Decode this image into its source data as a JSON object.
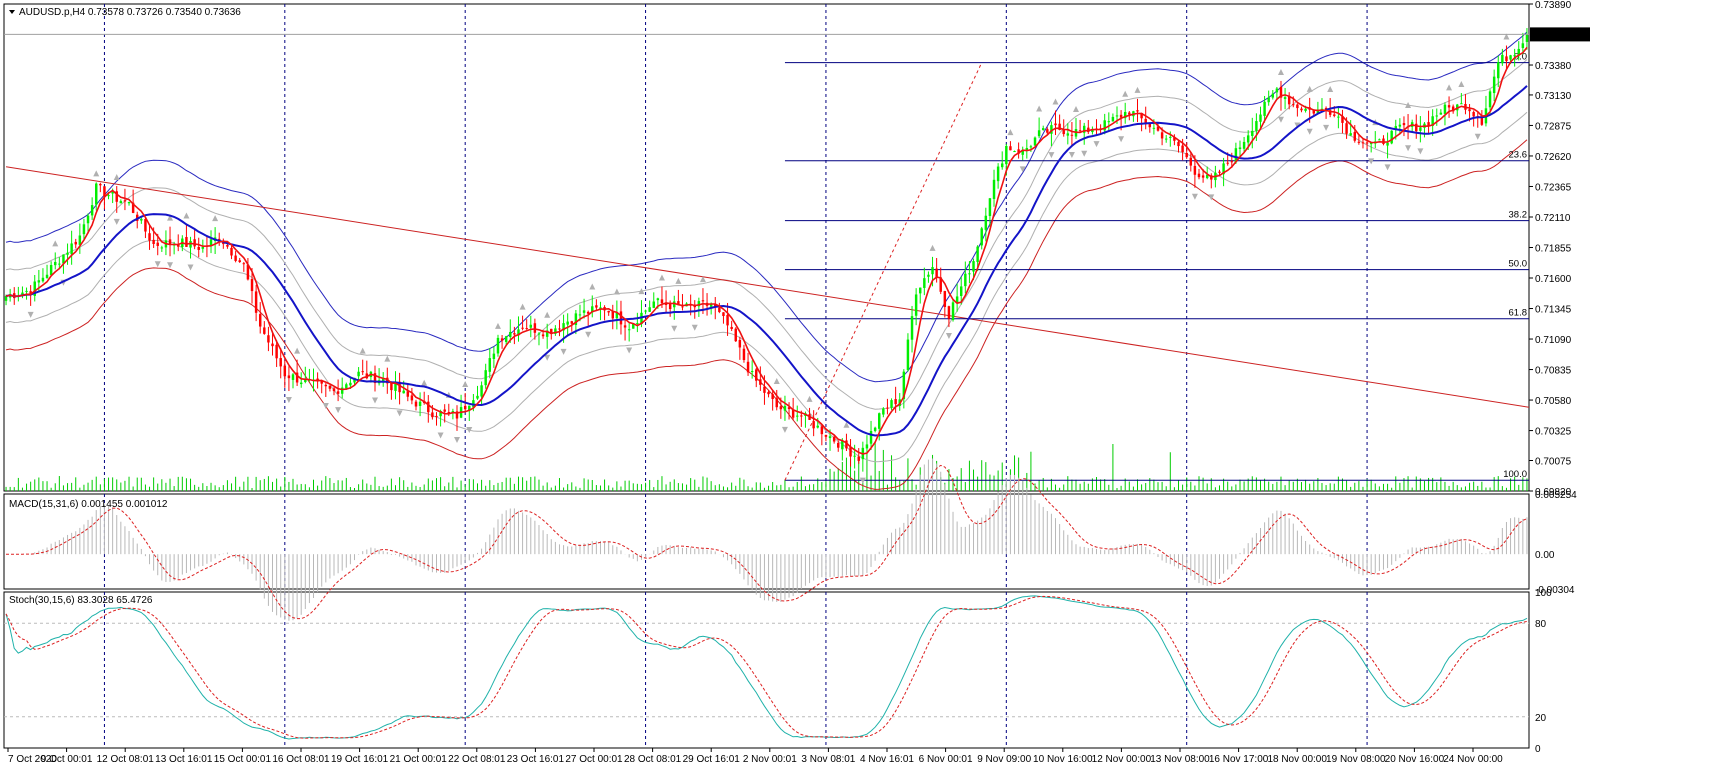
{
  "chart_data": [
    {
      "type": "candlestick",
      "symbol_info": "AUDUSD.p,H4  0.73578 0.73726 0.73540 0.73636",
      "last_price": "0.73636",
      "ylim": [
        0.6982,
        0.7389
      ],
      "y_ticks": [
        "0.73890",
        "0.73380",
        "0.73130",
        "0.72875",
        "0.72620",
        "0.72365",
        "0.72110",
        "0.71855",
        "0.71600",
        "0.71345",
        "0.71090",
        "0.70835",
        "0.70580",
        "0.70325",
        "0.70075",
        "0.69820"
      ],
      "x_ticks": [
        "7 Oct 2020",
        "9 Oct 00:01",
        "12 Oct 08:01",
        "13 Oct 16:01",
        "15 Oct 00:01",
        "16 Oct 08:01",
        "19 Oct 16:01",
        "21 Oct 00:01",
        "22 Oct 08:01",
        "23 Oct 16:01",
        "27 Oct 00:01",
        "28 Oct 08:01",
        "29 Oct 16:01",
        "2 Nov 00:01",
        "3 Nov 08:01",
        "4 Nov 16:01",
        "6 Nov 00:01",
        "9 Nov 09:00",
        "10 Nov 16:00",
        "12 Nov 00:00",
        "13 Nov 08:00",
        "16 Nov 17:00",
        "18 Nov 00:00",
        "19 Nov 08:00",
        "20 Nov 16:00",
        "24 Nov 00:00"
      ],
      "close_path": [
        [
          0,
          0.7145
        ],
        [
          6,
          0.715
        ],
        [
          12,
          0.7172
        ],
        [
          18,
          0.7195
        ],
        [
          22,
          0.7235
        ],
        [
          26,
          0.7228
        ],
        [
          30,
          0.7222
        ],
        [
          36,
          0.7188
        ],
        [
          42,
          0.719
        ],
        [
          48,
          0.7185
        ],
        [
          52,
          0.7195
        ],
        [
          58,
          0.717
        ],
        [
          62,
          0.712
        ],
        [
          68,
          0.708
        ],
        [
          74,
          0.7072
        ],
        [
          80,
          0.7065
        ],
        [
          86,
          0.708
        ],
        [
          92,
          0.7075
        ],
        [
          98,
          0.706
        ],
        [
          104,
          0.7048
        ],
        [
          110,
          0.7045
        ],
        [
          116,
          0.707
        ],
        [
          120,
          0.711
        ],
        [
          126,
          0.712
        ],
        [
          132,
          0.7115
        ],
        [
          140,
          0.713
        ],
        [
          146,
          0.7135
        ],
        [
          152,
          0.712
        ],
        [
          158,
          0.714
        ],
        [
          166,
          0.7135
        ],
        [
          172,
          0.7138
        ],
        [
          176,
          0.712
        ],
        [
          182,
          0.7078
        ],
        [
          188,
          0.7052
        ],
        [
          194,
          0.7045
        ],
        [
          200,
          0.703
        ],
        [
          204,
          0.702
        ],
        [
          208,
          0.701
        ],
        [
          214,
          0.705
        ],
        [
          218,
          0.706
        ],
        [
          222,
          0.715
        ],
        [
          226,
          0.717
        ],
        [
          230,
          0.713
        ],
        [
          236,
          0.7175
        ],
        [
          240,
          0.723
        ],
        [
          244,
          0.727
        ],
        [
          248,
          0.7265
        ],
        [
          252,
          0.728
        ],
        [
          256,
          0.7285
        ],
        [
          262,
          0.7282
        ],
        [
          268,
          0.7288
        ],
        [
          274,
          0.73
        ],
        [
          280,
          0.7285
        ],
        [
          286,
          0.727
        ],
        [
          290,
          0.725
        ],
        [
          294,
          0.724
        ],
        [
          300,
          0.7265
        ],
        [
          306,
          0.7298
        ],
        [
          310,
          0.7318
        ],
        [
          314,
          0.7305
        ],
        [
          318,
          0.73
        ],
        [
          324,
          0.73
        ],
        [
          328,
          0.728
        ],
        [
          334,
          0.727
        ],
        [
          340,
          0.7285
        ],
        [
          346,
          0.7288
        ],
        [
          350,
          0.73
        ],
        [
          356,
          0.7305
        ],
        [
          360,
          0.7292
        ],
        [
          364,
          0.734
        ],
        [
          368,
          0.735
        ],
        [
          371,
          0.7364
        ]
      ],
      "fibonacci": [
        {
          "level": "0.0",
          "price": 0.734
        },
        {
          "level": "23.6",
          "price": 0.7258
        },
        {
          "level": "38.2",
          "price": 0.7208
        },
        {
          "level": "50.0",
          "price": 0.7167
        },
        {
          "level": "61.8",
          "price": 0.7126
        },
        {
          "level": "100.0",
          "price": 0.6991
        }
      ],
      "trendline": {
        "from": [
          0,
          0.7253
        ],
        "to": [
          372,
          0.7052
        ]
      },
      "volume_note": "tick volume histogram"
    },
    {
      "type": "line",
      "indicator": "MACD(15,31,6) 0.001455 0.001012",
      "ylim": [
        -0.00304,
        0.00525
      ],
      "y_ticks": [
        "0.005254",
        "0.00",
        "-0.00304"
      ]
    },
    {
      "type": "line",
      "indicator": "Stoch(30,15,6) 83.3028 65.4726",
      "ylim": [
        0,
        100
      ],
      "y_ticks": [
        "100",
        "80",
        "20",
        "0"
      ],
      "levels": [
        80,
        20
      ]
    }
  ],
  "colors": {
    "bull": "#00ee00",
    "bear": "#ff0000",
    "ma_fast": "#ee1111",
    "ma_blue": "#1414c8",
    "envelope_upper": "#2a2ac0",
    "envelope_lower": "#cc2222",
    "grid": "#000080",
    "stoch_main": "#20b2aa",
    "stoch_signal": "#dd2222"
  }
}
